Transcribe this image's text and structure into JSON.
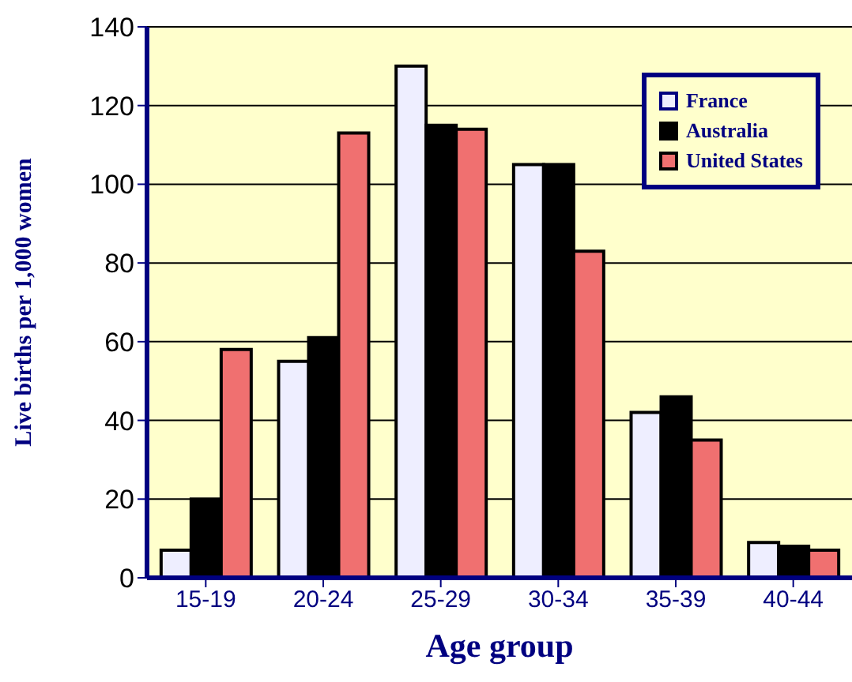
{
  "chart_data": {
    "type": "bar",
    "xlabel": "Age group",
    "ylabel": "Live births per 1,000 women",
    "categories": [
      "15-19",
      "20-24",
      "25-29",
      "30-34",
      "35-39",
      "40-44"
    ],
    "series": [
      {
        "name": "France",
        "color": "#eeeeff",
        "values": [
          7,
          55,
          130,
          105,
          42,
          9
        ]
      },
      {
        "name": "Australia",
        "color": "#000000",
        "values": [
          20,
          61,
          115,
          105,
          46,
          8
        ]
      },
      {
        "name": "United States",
        "color": "#f07070",
        "values": [
          58,
          113,
          114,
          83,
          35,
          7
        ]
      }
    ],
    "ylim": [
      0,
      140
    ],
    "yticks": [
      0,
      20,
      40,
      60,
      80,
      100,
      120,
      140
    ],
    "grid": "y",
    "legend": "top right"
  }
}
